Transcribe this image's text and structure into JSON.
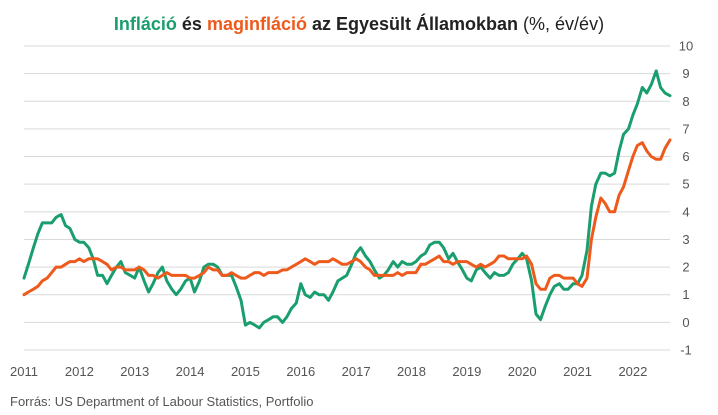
{
  "title": {
    "part1": "Infláció",
    "part2": " és ",
    "part3": "maginfláció",
    "part4": " az Egyesült Államokban",
    "part5": " (%, év/év)"
  },
  "source": "Forrás: US Department of Labour Statistics, Portfolio",
  "colors": {
    "inflation": "#1a9e6e",
    "core": "#ee5a1c",
    "grid": "#d9d9d9",
    "text": "#555555"
  },
  "chart_data": {
    "type": "line",
    "xlabel": "",
    "ylabel": "",
    "ylim": [
      -1,
      10
    ],
    "xlim": [
      2011.0,
      2022.67
    ],
    "grid": true,
    "y_axis_side": "right",
    "x_ticks": [
      2011,
      2012,
      2013,
      2014,
      2015,
      2016,
      2017,
      2018,
      2019,
      2020,
      2021,
      2022
    ],
    "y_ticks": [
      -1,
      0,
      1,
      2,
      3,
      4,
      5,
      6,
      7,
      8,
      9,
      10
    ],
    "series": [
      {
        "name": "Infláció",
        "points": [
          [
            2011.0,
            1.6
          ],
          [
            2011.08,
            2.1
          ],
          [
            2011.17,
            2.7
          ],
          [
            2011.25,
            3.2
          ],
          [
            2011.33,
            3.6
          ],
          [
            2011.42,
            3.6
          ],
          [
            2011.5,
            3.6
          ],
          [
            2011.58,
            3.8
          ],
          [
            2011.67,
            3.9
          ],
          [
            2011.75,
            3.5
          ],
          [
            2011.83,
            3.4
          ],
          [
            2011.92,
            3.0
          ],
          [
            2012.0,
            2.9
          ],
          [
            2012.08,
            2.9
          ],
          [
            2012.17,
            2.7
          ],
          [
            2012.25,
            2.3
          ],
          [
            2012.33,
            1.7
          ],
          [
            2012.42,
            1.7
          ],
          [
            2012.5,
            1.4
          ],
          [
            2012.58,
            1.7
          ],
          [
            2012.67,
            2.0
          ],
          [
            2012.75,
            2.2
          ],
          [
            2012.83,
            1.8
          ],
          [
            2012.92,
            1.7
          ],
          [
            2013.0,
            1.6
          ],
          [
            2013.08,
            2.0
          ],
          [
            2013.17,
            1.5
          ],
          [
            2013.25,
            1.1
          ],
          [
            2013.33,
            1.4
          ],
          [
            2013.42,
            1.8
          ],
          [
            2013.5,
            2.0
          ],
          [
            2013.58,
            1.5
          ],
          [
            2013.67,
            1.2
          ],
          [
            2013.75,
            1.0
          ],
          [
            2013.83,
            1.2
          ],
          [
            2013.92,
            1.5
          ],
          [
            2014.0,
            1.6
          ],
          [
            2014.08,
            1.1
          ],
          [
            2014.17,
            1.5
          ],
          [
            2014.25,
            2.0
          ],
          [
            2014.33,
            2.1
          ],
          [
            2014.42,
            2.1
          ],
          [
            2014.5,
            2.0
          ],
          [
            2014.58,
            1.7
          ],
          [
            2014.67,
            1.7
          ],
          [
            2014.75,
            1.7
          ],
          [
            2014.83,
            1.3
          ],
          [
            2014.92,
            0.8
          ],
          [
            2015.0,
            -0.1
          ],
          [
            2015.08,
            0.0
          ],
          [
            2015.17,
            -0.1
          ],
          [
            2015.25,
            -0.2
          ],
          [
            2015.33,
            0.0
          ],
          [
            2015.42,
            0.1
          ],
          [
            2015.5,
            0.2
          ],
          [
            2015.58,
            0.2
          ],
          [
            2015.67,
            0.0
          ],
          [
            2015.75,
            0.2
          ],
          [
            2015.83,
            0.5
          ],
          [
            2015.92,
            0.7
          ],
          [
            2016.0,
            1.4
          ],
          [
            2016.08,
            1.0
          ],
          [
            2016.17,
            0.9
          ],
          [
            2016.25,
            1.1
          ],
          [
            2016.33,
            1.0
          ],
          [
            2016.42,
            1.0
          ],
          [
            2016.5,
            0.8
          ],
          [
            2016.58,
            1.1
          ],
          [
            2016.67,
            1.5
          ],
          [
            2016.75,
            1.6
          ],
          [
            2016.83,
            1.7
          ],
          [
            2016.92,
            2.1
          ],
          [
            2017.0,
            2.5
          ],
          [
            2017.08,
            2.7
          ],
          [
            2017.17,
            2.4
          ],
          [
            2017.25,
            2.2
          ],
          [
            2017.33,
            1.9
          ],
          [
            2017.42,
            1.6
          ],
          [
            2017.5,
            1.7
          ],
          [
            2017.58,
            1.9
          ],
          [
            2017.67,
            2.2
          ],
          [
            2017.75,
            2.0
          ],
          [
            2017.83,
            2.2
          ],
          [
            2017.92,
            2.1
          ],
          [
            2018.0,
            2.1
          ],
          [
            2018.08,
            2.2
          ],
          [
            2018.17,
            2.4
          ],
          [
            2018.25,
            2.5
          ],
          [
            2018.33,
            2.8
          ],
          [
            2018.42,
            2.9
          ],
          [
            2018.5,
            2.9
          ],
          [
            2018.58,
            2.7
          ],
          [
            2018.67,
            2.3
          ],
          [
            2018.75,
            2.5
          ],
          [
            2018.83,
            2.2
          ],
          [
            2018.92,
            1.9
          ],
          [
            2019.0,
            1.6
          ],
          [
            2019.08,
            1.5
          ],
          [
            2019.17,
            1.9
          ],
          [
            2019.25,
            2.0
          ],
          [
            2019.33,
            1.8
          ],
          [
            2019.42,
            1.6
          ],
          [
            2019.5,
            1.8
          ],
          [
            2019.58,
            1.7
          ],
          [
            2019.67,
            1.7
          ],
          [
            2019.75,
            1.8
          ],
          [
            2019.83,
            2.1
          ],
          [
            2019.92,
            2.3
          ],
          [
            2020.0,
            2.5
          ],
          [
            2020.08,
            2.3
          ],
          [
            2020.17,
            1.5
          ],
          [
            2020.25,
            0.3
          ],
          [
            2020.33,
            0.1
          ],
          [
            2020.42,
            0.6
          ],
          [
            2020.5,
            1.0
          ],
          [
            2020.58,
            1.3
          ],
          [
            2020.67,
            1.4
          ],
          [
            2020.75,
            1.2
          ],
          [
            2020.83,
            1.2
          ],
          [
            2020.92,
            1.4
          ],
          [
            2021.0,
            1.4
          ],
          [
            2021.08,
            1.7
          ],
          [
            2021.17,
            2.6
          ],
          [
            2021.25,
            4.2
          ],
          [
            2021.33,
            5.0
          ],
          [
            2021.42,
            5.4
          ],
          [
            2021.5,
            5.4
          ],
          [
            2021.58,
            5.3
          ],
          [
            2021.67,
            5.4
          ],
          [
            2021.75,
            6.2
          ],
          [
            2021.83,
            6.8
          ],
          [
            2021.92,
            7.0
          ],
          [
            2022.0,
            7.5
          ],
          [
            2022.08,
            7.9
          ],
          [
            2022.17,
            8.5
          ],
          [
            2022.25,
            8.3
          ],
          [
            2022.33,
            8.6
          ],
          [
            2022.42,
            9.1
          ],
          [
            2022.5,
            8.5
          ],
          [
            2022.58,
            8.3
          ],
          [
            2022.67,
            8.2
          ]
        ]
      },
      {
        "name": "maginfláció",
        "points": [
          [
            2011.0,
            1.0
          ],
          [
            2011.08,
            1.1
          ],
          [
            2011.17,
            1.2
          ],
          [
            2011.25,
            1.3
          ],
          [
            2011.33,
            1.5
          ],
          [
            2011.42,
            1.6
          ],
          [
            2011.5,
            1.8
          ],
          [
            2011.58,
            2.0
          ],
          [
            2011.67,
            2.0
          ],
          [
            2011.75,
            2.1
          ],
          [
            2011.83,
            2.2
          ],
          [
            2011.92,
            2.2
          ],
          [
            2012.0,
            2.3
          ],
          [
            2012.08,
            2.2
          ],
          [
            2012.17,
            2.3
          ],
          [
            2012.25,
            2.3
          ],
          [
            2012.33,
            2.3
          ],
          [
            2012.42,
            2.2
          ],
          [
            2012.5,
            2.1
          ],
          [
            2012.58,
            1.9
          ],
          [
            2012.67,
            2.0
          ],
          [
            2012.75,
            2.0
          ],
          [
            2012.83,
            1.9
          ],
          [
            2012.92,
            1.9
          ],
          [
            2013.0,
            1.9
          ],
          [
            2013.08,
            2.0
          ],
          [
            2013.17,
            1.9
          ],
          [
            2013.25,
            1.7
          ],
          [
            2013.33,
            1.7
          ],
          [
            2013.42,
            1.6
          ],
          [
            2013.5,
            1.7
          ],
          [
            2013.58,
            1.8
          ],
          [
            2013.67,
            1.7
          ],
          [
            2013.75,
            1.7
          ],
          [
            2013.83,
            1.7
          ],
          [
            2013.92,
            1.7
          ],
          [
            2014.0,
            1.6
          ],
          [
            2014.08,
            1.6
          ],
          [
            2014.17,
            1.7
          ],
          [
            2014.25,
            1.8
          ],
          [
            2014.33,
            2.0
          ],
          [
            2014.42,
            1.9
          ],
          [
            2014.5,
            1.9
          ],
          [
            2014.58,
            1.7
          ],
          [
            2014.67,
            1.7
          ],
          [
            2014.75,
            1.8
          ],
          [
            2014.83,
            1.7
          ],
          [
            2014.92,
            1.6
          ],
          [
            2015.0,
            1.6
          ],
          [
            2015.08,
            1.7
          ],
          [
            2015.17,
            1.8
          ],
          [
            2015.25,
            1.8
          ],
          [
            2015.33,
            1.7
          ],
          [
            2015.42,
            1.8
          ],
          [
            2015.5,
            1.8
          ],
          [
            2015.58,
            1.8
          ],
          [
            2015.67,
            1.9
          ],
          [
            2015.75,
            1.9
          ],
          [
            2015.83,
            2.0
          ],
          [
            2015.92,
            2.1
          ],
          [
            2016.0,
            2.2
          ],
          [
            2016.08,
            2.3
          ],
          [
            2016.17,
            2.2
          ],
          [
            2016.25,
            2.1
          ],
          [
            2016.33,
            2.2
          ],
          [
            2016.42,
            2.2
          ],
          [
            2016.5,
            2.2
          ],
          [
            2016.58,
            2.3
          ],
          [
            2016.67,
            2.2
          ],
          [
            2016.75,
            2.1
          ],
          [
            2016.83,
            2.1
          ],
          [
            2016.92,
            2.2
          ],
          [
            2017.0,
            2.3
          ],
          [
            2017.08,
            2.2
          ],
          [
            2017.17,
            2.0
          ],
          [
            2017.25,
            1.9
          ],
          [
            2017.33,
            1.7
          ],
          [
            2017.42,
            1.7
          ],
          [
            2017.5,
            1.7
          ],
          [
            2017.58,
            1.7
          ],
          [
            2017.67,
            1.7
          ],
          [
            2017.75,
            1.8
          ],
          [
            2017.83,
            1.7
          ],
          [
            2017.92,
            1.8
          ],
          [
            2018.0,
            1.8
          ],
          [
            2018.08,
            1.8
          ],
          [
            2018.17,
            2.1
          ],
          [
            2018.25,
            2.1
          ],
          [
            2018.33,
            2.2
          ],
          [
            2018.42,
            2.3
          ],
          [
            2018.5,
            2.4
          ],
          [
            2018.58,
            2.2
          ],
          [
            2018.67,
            2.2
          ],
          [
            2018.75,
            2.1
          ],
          [
            2018.83,
            2.2
          ],
          [
            2018.92,
            2.2
          ],
          [
            2019.0,
            2.2
          ],
          [
            2019.08,
            2.1
          ],
          [
            2019.17,
            2.0
          ],
          [
            2019.25,
            2.1
          ],
          [
            2019.33,
            2.0
          ],
          [
            2019.42,
            2.1
          ],
          [
            2019.5,
            2.2
          ],
          [
            2019.58,
            2.4
          ],
          [
            2019.67,
            2.4
          ],
          [
            2019.75,
            2.3
          ],
          [
            2019.83,
            2.3
          ],
          [
            2019.92,
            2.3
          ],
          [
            2020.0,
            2.3
          ],
          [
            2020.08,
            2.4
          ],
          [
            2020.17,
            2.1
          ],
          [
            2020.25,
            1.4
          ],
          [
            2020.33,
            1.2
          ],
          [
            2020.42,
            1.2
          ],
          [
            2020.5,
            1.6
          ],
          [
            2020.58,
            1.7
          ],
          [
            2020.67,
            1.7
          ],
          [
            2020.75,
            1.6
          ],
          [
            2020.83,
            1.6
          ],
          [
            2020.92,
            1.6
          ],
          [
            2021.0,
            1.4
          ],
          [
            2021.08,
            1.3
          ],
          [
            2021.17,
            1.6
          ],
          [
            2021.25,
            3.0
          ],
          [
            2021.33,
            3.8
          ],
          [
            2021.42,
            4.5
          ],
          [
            2021.5,
            4.3
          ],
          [
            2021.58,
            4.0
          ],
          [
            2021.67,
            4.0
          ],
          [
            2021.75,
            4.6
          ],
          [
            2021.83,
            4.9
          ],
          [
            2021.92,
            5.5
          ],
          [
            2022.0,
            6.0
          ],
          [
            2022.08,
            6.4
          ],
          [
            2022.17,
            6.5
          ],
          [
            2022.25,
            6.2
          ],
          [
            2022.33,
            6.0
          ],
          [
            2022.42,
            5.9
          ],
          [
            2022.5,
            5.9
          ],
          [
            2022.58,
            6.3
          ],
          [
            2022.67,
            6.6
          ]
        ]
      }
    ]
  }
}
